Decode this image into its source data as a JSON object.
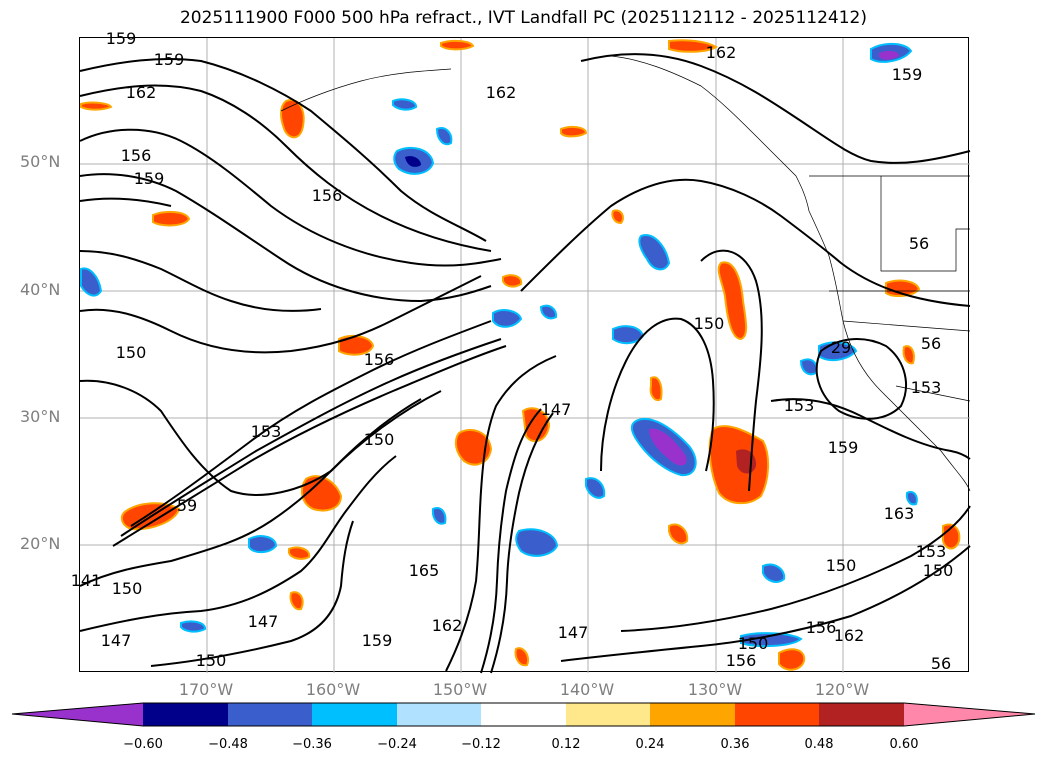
{
  "title": "2025111900 F000 500 hPa refract., IVT Landfall PC (2025112112 - 2025112412)",
  "map": {
    "lat_labels": [
      "50°N",
      "40°N",
      "30°N",
      "20°N"
    ],
    "lon_labels": [
      "170°W",
      "160°W",
      "150°W",
      "140°W",
      "130°W",
      "120°W"
    ],
    "contour_labels": [
      "159",
      "159",
      "162",
      "156",
      "159",
      "156",
      "162",
      "162",
      "159",
      "150",
      "156",
      "153",
      "150",
      "59",
      "141",
      "150",
      "147",
      "150",
      "147",
      "165",
      "162",
      "159",
      "147",
      "147",
      "150",
      "153",
      "159",
      "29",
      "153",
      "56",
      "56",
      "163",
      "153",
      "150",
      "150",
      "156",
      "162",
      "150",
      "156",
      "56"
    ]
  },
  "colorbar": {
    "ticks": [
      "−0.60",
      "−0.48",
      "−0.36",
      "−0.24",
      "−0.12",
      "0.12",
      "0.24",
      "0.36",
      "0.48",
      "0.60"
    ],
    "colors": [
      "#9932cc",
      "#00008b",
      "#3a5fcd",
      "#00bfff",
      "#b0e2ff",
      "#ffffff",
      "#ffe88c",
      "#ffa500",
      "#ff4500",
      "#b22222",
      "#ff88aa"
    ]
  }
}
